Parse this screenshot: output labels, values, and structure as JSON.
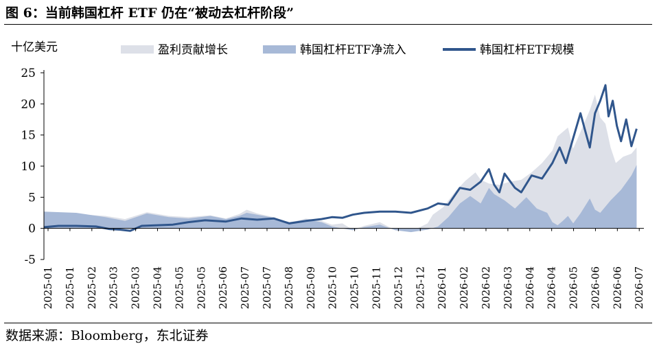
{
  "figure_title": "图 6：当前韩国杠杆 ETF 仍在“被动去杠杆阶段”",
  "source_note": "数据来源：Bloomberg，东北证券",
  "colors": {
    "gain": "#dde0e8",
    "inflow": "#a7b9d7",
    "aum": "#30568c",
    "axis": "#000000"
  },
  "chart_data": {
    "type": "area",
    "unit_label": "十亿美元",
    "legend_position": "top",
    "grid": false,
    "ylim": [
      -5,
      25
    ],
    "yticks": [
      -5,
      0,
      5,
      10,
      15,
      20,
      25
    ],
    "xlim": [
      "2025-01-01",
      "2026-08-01"
    ],
    "xticks": [
      "2025-01",
      "2025-01",
      "2025-02",
      "2025-03",
      "2025-03",
      "2025-04",
      "2025-05",
      "2025-05",
      "2025-06",
      "2025-07",
      "2025-07",
      "2025-08",
      "2025-09",
      "2025-10",
      "2025-10",
      "2025-11",
      "2025-12",
      "2025-12",
      "2026-01",
      "2026-02",
      "2026-02",
      "2026-03",
      "2026-04",
      "2026-04",
      "2026-05",
      "2026-06",
      "2026-06",
      "2026-07"
    ],
    "series": [
      {
        "name": "盈利贡献增长",
        "kind": "area",
        "points": [
          [
            "2025-01-01",
            2.7
          ],
          [
            "2025-02-01",
            2.3
          ],
          [
            "2025-03-01",
            2.0
          ],
          [
            "2025-03-20",
            1.5
          ],
          [
            "2025-04-10",
            2.6
          ],
          [
            "2025-05-01",
            2.0
          ],
          [
            "2025-05-20",
            1.8
          ],
          [
            "2025-06-10",
            2.1
          ],
          [
            "2025-06-25",
            1.6
          ],
          [
            "2025-07-08",
            2.3
          ],
          [
            "2025-07-15",
            3.0
          ],
          [
            "2025-07-25",
            2.4
          ],
          [
            "2025-08-10",
            1.8
          ],
          [
            "2025-08-25",
            0.9
          ],
          [
            "2025-09-10",
            1.6
          ],
          [
            "2025-09-25",
            1.2
          ],
          [
            "2025-10-05",
            0.6
          ],
          [
            "2025-10-15",
            0.8
          ],
          [
            "2025-10-25",
            -0.2
          ],
          [
            "2025-11-05",
            0.4
          ],
          [
            "2025-11-20",
            1.0
          ],
          [
            "2025-12-05",
            -0.3
          ],
          [
            "2025-12-20",
            -0.5
          ],
          [
            "2026-01-05",
            0.8
          ],
          [
            "2026-01-10",
            2.2
          ],
          [
            "2026-01-20",
            3.4
          ],
          [
            "2026-02-01",
            6.0
          ],
          [
            "2026-02-10",
            7.6
          ],
          [
            "2026-02-20",
            9.0
          ],
          [
            "2026-02-25",
            7.8
          ],
          [
            "2026-03-05",
            7.2
          ],
          [
            "2026-03-15",
            7.0
          ],
          [
            "2026-03-25",
            7.5
          ],
          [
            "2026-04-05",
            7.8
          ],
          [
            "2026-04-15",
            9.0
          ],
          [
            "2026-04-25",
            10.5
          ],
          [
            "2026-05-05",
            12.5
          ],
          [
            "2026-05-10",
            14.8
          ],
          [
            "2026-05-20",
            16.2
          ],
          [
            "2026-05-25",
            12.8
          ],
          [
            "2026-06-01",
            15.5
          ],
          [
            "2026-06-10",
            19.0
          ],
          [
            "2026-06-15",
            21.5
          ],
          [
            "2026-06-20",
            17.8
          ],
          [
            "2026-06-25",
            16.8
          ],
          [
            "2026-06-30",
            13.0
          ],
          [
            "2026-07-05",
            10.5
          ],
          [
            "2026-07-12",
            11.5
          ],
          [
            "2026-07-20",
            12.0
          ],
          [
            "2026-07-25",
            13.0
          ]
        ]
      },
      {
        "name": "韩国杠杆ETF净流入",
        "kind": "area",
        "points": [
          [
            "2025-01-01",
            2.7
          ],
          [
            "2025-02-01",
            2.5
          ],
          [
            "2025-03-01",
            1.8
          ],
          [
            "2025-03-20",
            1.2
          ],
          [
            "2025-04-10",
            2.4
          ],
          [
            "2025-05-01",
            1.8
          ],
          [
            "2025-05-20",
            1.6
          ],
          [
            "2025-06-10",
            2.0
          ],
          [
            "2025-06-25",
            1.5
          ],
          [
            "2025-07-08",
            2.0
          ],
          [
            "2025-07-15",
            2.5
          ],
          [
            "2025-07-25",
            2.2
          ],
          [
            "2025-08-10",
            1.7
          ],
          [
            "2025-08-25",
            1.0
          ],
          [
            "2025-09-10",
            1.4
          ],
          [
            "2025-09-25",
            1.0
          ],
          [
            "2025-10-05",
            0.3
          ],
          [
            "2025-10-15",
            0.0
          ],
          [
            "2025-10-25",
            -0.3
          ],
          [
            "2025-11-05",
            0.2
          ],
          [
            "2025-11-20",
            0.6
          ],
          [
            "2025-12-05",
            -0.3
          ],
          [
            "2025-12-20",
            -0.6
          ],
          [
            "2026-01-05",
            -0.2
          ],
          [
            "2026-01-15",
            0.3
          ],
          [
            "2026-01-25",
            1.8
          ],
          [
            "2026-02-05",
            4.0
          ],
          [
            "2026-02-15",
            5.2
          ],
          [
            "2026-02-25",
            4.0
          ],
          [
            "2026-03-05",
            6.5
          ],
          [
            "2026-03-10",
            5.5
          ],
          [
            "2026-03-20",
            4.5
          ],
          [
            "2026-03-30",
            3.2
          ],
          [
            "2026-04-10",
            5.0
          ],
          [
            "2026-04-20",
            3.2
          ],
          [
            "2026-04-30",
            2.5
          ],
          [
            "2026-05-05",
            1.0
          ],
          [
            "2026-05-10",
            0.5
          ],
          [
            "2026-05-15",
            1.2
          ],
          [
            "2026-05-20",
            2.0
          ],
          [
            "2026-05-25",
            0.8
          ],
          [
            "2026-06-01",
            2.4
          ],
          [
            "2026-06-10",
            4.8
          ],
          [
            "2026-06-15",
            3.0
          ],
          [
            "2026-06-20",
            2.5
          ],
          [
            "2026-06-30",
            4.5
          ],
          [
            "2026-07-10",
            6.2
          ],
          [
            "2026-07-20",
            8.5
          ],
          [
            "2026-07-25",
            10.2
          ]
        ]
      },
      {
        "name": "韩国杠杆ETF规模",
        "kind": "line",
        "points": [
          [
            "2025-01-01",
            0.2
          ],
          [
            "2025-01-15",
            0.4
          ],
          [
            "2025-02-01",
            0.4
          ],
          [
            "2025-02-20",
            0.3
          ],
          [
            "2025-03-05",
            -0.1
          ],
          [
            "2025-03-15",
            -0.2
          ],
          [
            "2025-03-25",
            -0.4
          ],
          [
            "2025-04-05",
            0.4
          ],
          [
            "2025-04-20",
            0.5
          ],
          [
            "2025-05-05",
            0.6
          ],
          [
            "2025-05-20",
            1.0
          ],
          [
            "2025-06-05",
            1.3
          ],
          [
            "2025-06-25",
            1.1
          ],
          [
            "2025-07-10",
            1.6
          ],
          [
            "2025-07-25",
            1.4
          ],
          [
            "2025-08-10",
            1.6
          ],
          [
            "2025-08-25",
            0.8
          ],
          [
            "2025-09-10",
            1.2
          ],
          [
            "2025-09-25",
            1.5
          ],
          [
            "2025-10-05",
            1.8
          ],
          [
            "2025-10-15",
            1.7
          ],
          [
            "2025-10-25",
            2.2
          ],
          [
            "2025-11-05",
            2.5
          ],
          [
            "2025-11-20",
            2.7
          ],
          [
            "2025-12-05",
            2.7
          ],
          [
            "2025-12-20",
            2.5
          ],
          [
            "2026-01-05",
            3.2
          ],
          [
            "2026-01-15",
            4.0
          ],
          [
            "2026-01-25",
            3.8
          ],
          [
            "2026-02-05",
            6.5
          ],
          [
            "2026-02-15",
            6.2
          ],
          [
            "2026-02-25",
            7.5
          ],
          [
            "2026-03-05",
            9.5
          ],
          [
            "2026-03-10",
            7.0
          ],
          [
            "2026-03-15",
            5.8
          ],
          [
            "2026-03-20",
            8.8
          ],
          [
            "2026-03-30",
            6.5
          ],
          [
            "2026-04-05",
            5.8
          ],
          [
            "2026-04-15",
            8.5
          ],
          [
            "2026-04-25",
            8.0
          ],
          [
            "2026-05-05",
            10.5
          ],
          [
            "2026-05-12",
            13.0
          ],
          [
            "2026-05-18",
            10.5
          ],
          [
            "2026-05-25",
            14.5
          ],
          [
            "2026-06-01",
            18.5
          ],
          [
            "2026-06-05",
            16.0
          ],
          [
            "2026-06-10",
            13.0
          ],
          [
            "2026-06-15",
            18.5
          ],
          [
            "2026-06-20",
            20.5
          ],
          [
            "2026-06-25",
            23.0
          ],
          [
            "2026-06-28",
            18.0
          ],
          [
            "2026-07-02",
            20.5
          ],
          [
            "2026-07-06",
            16.5
          ],
          [
            "2026-07-10",
            14.0
          ],
          [
            "2026-07-15",
            17.5
          ],
          [
            "2026-07-20",
            13.2
          ],
          [
            "2026-07-25",
            16.0
          ]
        ]
      }
    ]
  }
}
